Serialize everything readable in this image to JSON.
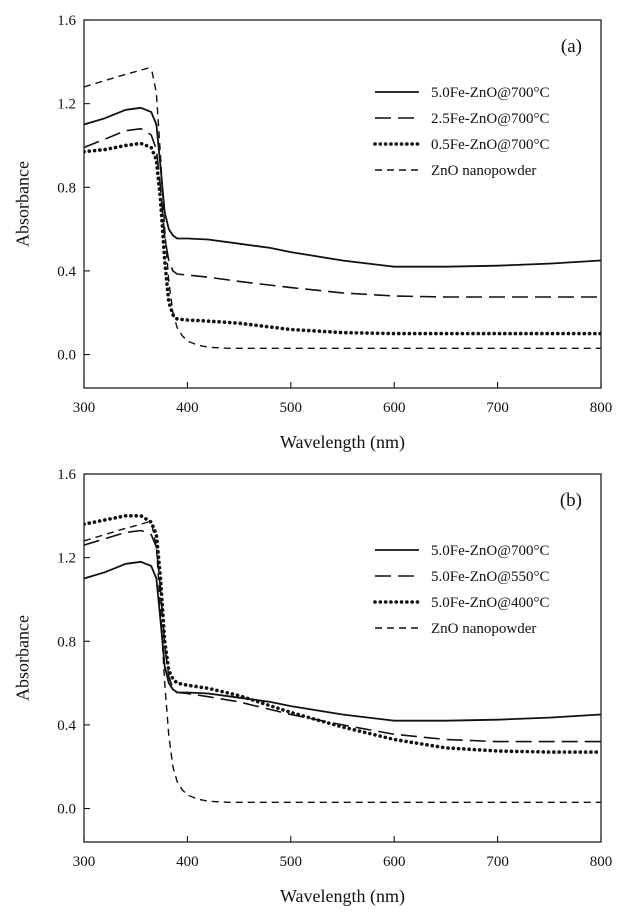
{
  "chart_data": [
    {
      "type": "line",
      "panel_label": "(a)",
      "xlabel": "Wavelength (nm)",
      "ylabel": "Absorbance",
      "xlim": [
        300,
        800
      ],
      "ylim": [
        -0.16,
        1.6
      ],
      "xticks": [
        300,
        400,
        500,
        600,
        700,
        800
      ],
      "yticks": [
        0.0,
        0.4,
        0.8,
        1.2,
        1.6
      ],
      "xtick_labels": [
        "300",
        "400",
        "500",
        "600",
        "700",
        "800"
      ],
      "ytick_labels": [
        "0.0",
        "0.4",
        "0.8",
        "1.2",
        "1.6"
      ],
      "grid": false,
      "legend_position": "right",
      "series": [
        {
          "name": "5.0Fe-ZnO@700°C",
          "style": "solid",
          "x": [
            300,
            320,
            340,
            355,
            365,
            370,
            374,
            378,
            382,
            386,
            390,
            400,
            420,
            450,
            480,
            500,
            550,
            600,
            650,
            700,
            750,
            800
          ],
          "y": [
            1.1,
            1.13,
            1.17,
            1.18,
            1.16,
            1.1,
            0.9,
            0.68,
            0.6,
            0.57,
            0.555,
            0.555,
            0.55,
            0.53,
            0.51,
            0.49,
            0.45,
            0.42,
            0.42,
            0.425,
            0.435,
            0.45
          ]
        },
        {
          "name": "2.5Fe-ZnO@700°C",
          "style": "long-dash",
          "x": [
            300,
            320,
            340,
            355,
            365,
            370,
            374,
            378,
            382,
            386,
            390,
            400,
            420,
            450,
            500,
            550,
            600,
            650,
            700,
            750,
            800
          ],
          "y": [
            0.99,
            1.03,
            1.07,
            1.08,
            1.05,
            0.98,
            0.8,
            0.56,
            0.45,
            0.4,
            0.385,
            0.38,
            0.37,
            0.35,
            0.32,
            0.295,
            0.28,
            0.275,
            0.275,
            0.275,
            0.275
          ]
        },
        {
          "name": "0.5Fe-ZnO@700°C",
          "style": "dotted",
          "x": [
            300,
            320,
            340,
            355,
            365,
            370,
            374,
            378,
            382,
            386,
            390,
            400,
            420,
            450,
            500,
            550,
            600,
            700,
            800
          ],
          "y": [
            0.97,
            0.98,
            1.0,
            1.01,
            0.99,
            0.93,
            0.74,
            0.45,
            0.25,
            0.19,
            0.17,
            0.165,
            0.16,
            0.15,
            0.12,
            0.105,
            0.1,
            0.1,
            0.1
          ]
        },
        {
          "name": "ZnO nanopowder",
          "style": "dashed",
          "x": [
            300,
            320,
            340,
            355,
            362,
            366,
            370,
            374,
            378,
            382,
            386,
            390,
            395,
            400,
            410,
            420,
            440,
            500,
            600,
            700,
            800
          ],
          "y": [
            1.28,
            1.31,
            1.34,
            1.36,
            1.37,
            1.35,
            1.25,
            0.95,
            0.6,
            0.35,
            0.2,
            0.13,
            0.09,
            0.065,
            0.045,
            0.035,
            0.03,
            0.03,
            0.03,
            0.03,
            0.03
          ]
        }
      ]
    },
    {
      "type": "line",
      "panel_label": "(b)",
      "xlabel": "Wavelength (nm)",
      "ylabel": "Absorbance",
      "xlim": [
        300,
        800
      ],
      "ylim": [
        -0.16,
        1.6
      ],
      "xticks": [
        300,
        400,
        500,
        600,
        700,
        800
      ],
      "yticks": [
        0.0,
        0.4,
        0.8,
        1.2,
        1.6
      ],
      "xtick_labels": [
        "300",
        "400",
        "500",
        "600",
        "700",
        "800"
      ],
      "ytick_labels": [
        "0.0",
        "0.4",
        "0.8",
        "1.2",
        "1.6"
      ],
      "grid": false,
      "legend_position": "right",
      "series": [
        {
          "name": "5.0Fe-ZnO@700°C",
          "style": "solid",
          "x": [
            300,
            320,
            340,
            355,
            365,
            370,
            374,
            378,
            382,
            386,
            390,
            400,
            420,
            450,
            480,
            500,
            550,
            600,
            650,
            700,
            750,
            800
          ],
          "y": [
            1.1,
            1.13,
            1.17,
            1.18,
            1.16,
            1.1,
            0.9,
            0.68,
            0.6,
            0.57,
            0.555,
            0.555,
            0.55,
            0.53,
            0.51,
            0.49,
            0.45,
            0.42,
            0.42,
            0.425,
            0.435,
            0.45
          ]
        },
        {
          "name": "5.0Fe-ZnO@550°C",
          "style": "long-dash",
          "x": [
            300,
            320,
            340,
            355,
            365,
            370,
            374,
            378,
            382,
            386,
            390,
            400,
            420,
            450,
            500,
            550,
            600,
            650,
            700,
            750,
            800
          ],
          "y": [
            1.26,
            1.29,
            1.32,
            1.33,
            1.31,
            1.25,
            1.05,
            0.78,
            0.63,
            0.575,
            0.555,
            0.55,
            0.535,
            0.51,
            0.45,
            0.4,
            0.355,
            0.33,
            0.32,
            0.32,
            0.32
          ]
        },
        {
          "name": "5.0Fe-ZnO@400°C",
          "style": "dotted",
          "x": [
            300,
            320,
            340,
            355,
            365,
            370,
            374,
            378,
            382,
            386,
            390,
            400,
            420,
            450,
            500,
            550,
            600,
            650,
            700,
            750,
            800
          ],
          "y": [
            1.36,
            1.38,
            1.4,
            1.4,
            1.37,
            1.31,
            1.1,
            0.8,
            0.66,
            0.62,
            0.6,
            0.59,
            0.575,
            0.54,
            0.46,
            0.39,
            0.33,
            0.29,
            0.275,
            0.27,
            0.27
          ]
        },
        {
          "name": "ZnO nanopowder",
          "style": "dashed",
          "x": [
            300,
            320,
            340,
            355,
            362,
            366,
            370,
            374,
            378,
            382,
            386,
            390,
            395,
            400,
            410,
            420,
            440,
            500,
            600,
            700,
            800
          ],
          "y": [
            1.28,
            1.31,
            1.34,
            1.36,
            1.37,
            1.35,
            1.25,
            0.95,
            0.6,
            0.35,
            0.2,
            0.13,
            0.09,
            0.065,
            0.045,
            0.035,
            0.03,
            0.03,
            0.03,
            0.03,
            0.03
          ]
        }
      ]
    }
  ]
}
